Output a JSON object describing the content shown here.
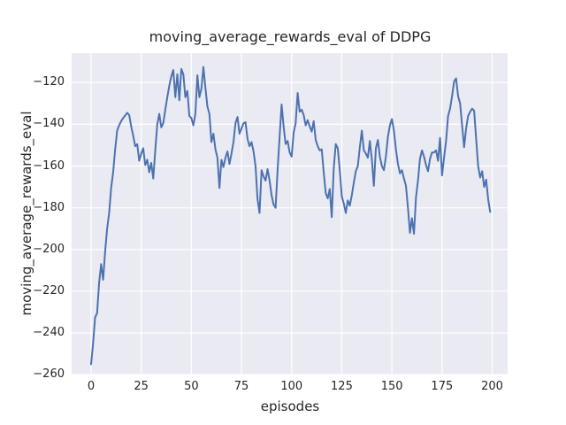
{
  "figure": {
    "title": "moving_average_rewards_eval of DDPG",
    "xlabel": "episodes",
    "ylabel": "moving_average_rewards_eval"
  },
  "colors": {
    "line": "#4c72b0",
    "axes_background": "#eaeaf2",
    "grid": "#ffffff",
    "text": "#262626"
  },
  "chart_data": {
    "type": "line",
    "title": "moving_average_rewards_eval of DDPG",
    "xlabel": "episodes",
    "ylabel": "moving_average_rewards_eval",
    "grid": true,
    "legend_position": "none",
    "x_ticks": [
      0,
      25,
      50,
      75,
      100,
      125,
      150,
      175,
      200
    ],
    "y_ticks": [
      -120,
      -140,
      -160,
      -180,
      -200,
      -220,
      -240,
      -260
    ],
    "xlim": [
      -9.7,
      207.7
    ],
    "ylim": [
      -259.9,
      -105.9
    ],
    "x_start": 0,
    "x_step": 1,
    "series": [
      {
        "name": "moving_average_rewards_eval",
        "values": [
          -255,
          -245,
          -232.5,
          -230.5,
          -216,
          -207,
          -214.5,
          -201,
          -190,
          -182.5,
          -170.5,
          -163,
          -152,
          -143,
          -140.5,
          -138.5,
          -137,
          -135.8,
          -134.5,
          -135.5,
          -141,
          -145.5,
          -150.5,
          -149.5,
          -157.5,
          -154,
          -151.5,
          -159.5,
          -157,
          -163,
          -158.5,
          -166,
          -152.5,
          -140,
          -135,
          -141.5,
          -139.5,
          -133,
          -127,
          -121.5,
          -117,
          -114,
          -127,
          -116,
          -128.5,
          -113.5,
          -116,
          -127,
          -124,
          -136,
          -137,
          -140.5,
          -135,
          -116.5,
          -127,
          -123,
          -112.5,
          -122.5,
          -131.5,
          -135,
          -148.5,
          -144.5,
          -152,
          -156,
          -170.5,
          -157,
          -160.5,
          -156,
          -153,
          -159,
          -154,
          -148.5,
          -139.5,
          -136.5,
          -144.5,
          -142,
          -139.5,
          -139,
          -147,
          -150.5,
          -148.5,
          -153,
          -160,
          -176,
          -182.5,
          -162,
          -165,
          -167,
          -161.5,
          -167,
          -174,
          -178.5,
          -180,
          -162,
          -146,
          -130.5,
          -141,
          -149.5,
          -148,
          -153.5,
          -155.5,
          -144,
          -139.5,
          -125,
          -134,
          -133,
          -135.5,
          -140.5,
          -138,
          -141,
          -143.5,
          -138.5,
          -147.5,
          -150.5,
          -152.5,
          -152,
          -163,
          -173,
          -175.5,
          -171,
          -184.5,
          -161,
          -149.5,
          -151.5,
          -162,
          -174.5,
          -178,
          -182.5,
          -176.5,
          -179,
          -174,
          -168,
          -162.5,
          -160,
          -151,
          -143,
          -152.5,
          -154,
          -156,
          -148,
          -157,
          -169.5,
          -151.5,
          -147.5,
          -155.5,
          -160,
          -162,
          -155.5,
          -146,
          -140.5,
          -137.5,
          -143,
          -152,
          -159,
          -163.5,
          -162,
          -166,
          -169.5,
          -180,
          -192,
          -185,
          -192.5,
          -175,
          -167,
          -156.5,
          -152.5,
          -155.5,
          -159.5,
          -162.5,
          -156.5,
          -153.5,
          -153.5,
          -152.5,
          -157.5,
          -146.5,
          -164.5,
          -156,
          -148,
          -136,
          -132.5,
          -126.5,
          -119.5,
          -118,
          -126.5,
          -130,
          -140.5,
          -151,
          -142,
          -136,
          -134,
          -132.5,
          -133.5,
          -147,
          -160,
          -165.5,
          -162.5,
          -170,
          -166.5,
          -176,
          -182
        ]
      }
    ]
  }
}
